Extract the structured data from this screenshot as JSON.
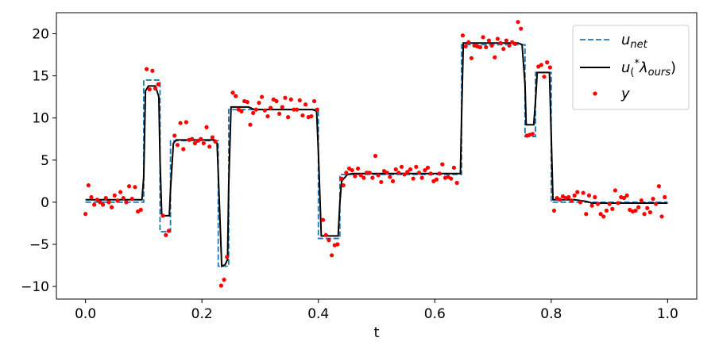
{
  "chart_data": {
    "type": "line",
    "title": "",
    "xlabel": "t",
    "ylabel": "",
    "xlim": [
      -0.05,
      1.05
    ],
    "ylim": [
      -11.5,
      22.5
    ],
    "xticks": [
      {
        "value": 0.0,
        "label": "0.0"
      },
      {
        "value": 0.2,
        "label": "0.2"
      },
      {
        "value": 0.4,
        "label": "0.4"
      },
      {
        "value": 0.6,
        "label": "0.6"
      },
      {
        "value": 0.8,
        "label": "0.8"
      },
      {
        "value": 1.0,
        "label": "1.0"
      }
    ],
    "yticks": [
      {
        "value": -10,
        "label": "−10"
      },
      {
        "value": -5,
        "label": "−5"
      },
      {
        "value": 0,
        "label": "0"
      },
      {
        "value": 5,
        "label": "5"
      },
      {
        "value": 10,
        "label": "10"
      },
      {
        "value": 15,
        "label": "15"
      },
      {
        "value": 20,
        "label": "20"
      }
    ],
    "grid": false,
    "legend_position": "top-right",
    "series": [
      {
        "name": "u_net",
        "legend_label": "u",
        "legend_sub": "net",
        "style": "dashed",
        "color": "#1f77b4",
        "points": [
          [
            0.0,
            0.0
          ],
          [
            0.1,
            0.0
          ],
          [
            0.1,
            14.5
          ],
          [
            0.128,
            14.5
          ],
          [
            0.128,
            -3.5
          ],
          [
            0.146,
            -3.5
          ],
          [
            0.146,
            7.3
          ],
          [
            0.228,
            7.3
          ],
          [
            0.228,
            -7.6
          ],
          [
            0.246,
            -7.6
          ],
          [
            0.246,
            11.0
          ],
          [
            0.4,
            11.0
          ],
          [
            0.4,
            -4.3
          ],
          [
            0.437,
            -4.3
          ],
          [
            0.437,
            3.3
          ],
          [
            0.646,
            3.3
          ],
          [
            0.646,
            18.7
          ],
          [
            0.755,
            18.7
          ],
          [
            0.755,
            7.8
          ],
          [
            0.773,
            7.8
          ],
          [
            0.773,
            15.4
          ],
          [
            0.8,
            15.4
          ],
          [
            0.8,
            0.0
          ],
          [
            1.0,
            0.0
          ]
        ]
      },
      {
        "name": "u*(λ_ours)",
        "legend_label": "u",
        "legend_sub": "(",
        "legend_sup": "*",
        "legend_rest": "λ",
        "legend_sub2": "ours",
        "legend_close": ")",
        "style": "solid",
        "color": "#000000",
        "points": [
          [
            0.0,
            0.3
          ],
          [
            0.097,
            0.3
          ],
          [
            0.1,
            3.0
          ],
          [
            0.103,
            13.2
          ],
          [
            0.108,
            13.8
          ],
          [
            0.12,
            13.8
          ],
          [
            0.126,
            12.5
          ],
          [
            0.128,
            5.0
          ],
          [
            0.131,
            -1.6
          ],
          [
            0.144,
            -1.6
          ],
          [
            0.146,
            1.5
          ],
          [
            0.151,
            7.0
          ],
          [
            0.156,
            7.4
          ],
          [
            0.222,
            7.4
          ],
          [
            0.226,
            7.0
          ],
          [
            0.228,
            3.5
          ],
          [
            0.234,
            -7.6
          ],
          [
            0.24,
            -7.4
          ],
          [
            0.244,
            -6.8
          ],
          [
            0.246,
            2.0
          ],
          [
            0.25,
            11.3
          ],
          [
            0.28,
            11.3
          ],
          [
            0.29,
            11.0
          ],
          [
            0.39,
            11.0
          ],
          [
            0.397,
            10.8
          ],
          [
            0.4,
            6.0
          ],
          [
            0.405,
            -4.0
          ],
          [
            0.434,
            -4.0
          ],
          [
            0.437,
            0.0
          ],
          [
            0.44,
            2.5
          ],
          [
            0.45,
            3.3
          ],
          [
            0.46,
            3.4
          ],
          [
            0.644,
            3.4
          ],
          [
            0.646,
            10.0
          ],
          [
            0.649,
            18.9
          ],
          [
            0.743,
            18.9
          ],
          [
            0.75,
            18.7
          ],
          [
            0.755,
            14.0
          ],
          [
            0.757,
            9.2
          ],
          [
            0.77,
            9.2
          ],
          [
            0.773,
            12.0
          ],
          [
            0.776,
            15.4
          ],
          [
            0.797,
            15.4
          ],
          [
            0.8,
            8.0
          ],
          [
            0.803,
            0.3
          ],
          [
            0.84,
            0.3
          ],
          [
            0.86,
            0.1
          ],
          [
            0.87,
            -0.1
          ],
          [
            1.0,
            -0.1
          ]
        ]
      },
      {
        "name": "y",
        "legend_label": "y",
        "style": "scatter",
        "color": "#ff0000",
        "points": [
          [
            0.0,
            -1.4
          ],
          [
            0.005,
            2.0
          ],
          [
            0.01,
            0.6
          ],
          [
            0.015,
            -0.3
          ],
          [
            0.02,
            0.3
          ],
          [
            0.025,
            0.0
          ],
          [
            0.03,
            -0.3
          ],
          [
            0.035,
            0.5
          ],
          [
            0.04,
            0.0
          ],
          [
            0.045,
            -0.6
          ],
          [
            0.05,
            0.8
          ],
          [
            0.055,
            0.2
          ],
          [
            0.06,
            1.2
          ],
          [
            0.065,
            0.5
          ],
          [
            0.07,
            0.0
          ],
          [
            0.075,
            1.9
          ],
          [
            0.08,
            0.4
          ],
          [
            0.085,
            1.8
          ],
          [
            0.09,
            -1.1
          ],
          [
            0.095,
            -0.9
          ],
          [
            0.105,
            15.8
          ],
          [
            0.11,
            13.4
          ],
          [
            0.115,
            15.6
          ],
          [
            0.12,
            13.5
          ],
          [
            0.125,
            14.0
          ],
          [
            0.133,
            -1.6
          ],
          [
            0.138,
            -3.9
          ],
          [
            0.143,
            -3.4
          ],
          [
            0.153,
            7.9
          ],
          [
            0.158,
            6.8
          ],
          [
            0.163,
            9.4
          ],
          [
            0.168,
            6.3
          ],
          [
            0.173,
            9.5
          ],
          [
            0.178,
            7.4
          ],
          [
            0.183,
            7.5
          ],
          [
            0.188,
            7.0
          ],
          [
            0.193,
            7.3
          ],
          [
            0.198,
            7.5
          ],
          [
            0.203,
            7.0
          ],
          [
            0.208,
            8.9
          ],
          [
            0.213,
            6.6
          ],
          [
            0.218,
            7.7
          ],
          [
            0.223,
            7.2
          ],
          [
            0.233,
            -9.9
          ],
          [
            0.238,
            -9.2
          ],
          [
            0.243,
            -6.5
          ],
          [
            0.253,
            13.0
          ],
          [
            0.258,
            12.6
          ],
          [
            0.263,
            11.0
          ],
          [
            0.268,
            10.8
          ],
          [
            0.273,
            12.0
          ],
          [
            0.278,
            11.9
          ],
          [
            0.283,
            9.2
          ],
          [
            0.288,
            10.6
          ],
          [
            0.293,
            11.0
          ],
          [
            0.298,
            11.8
          ],
          [
            0.303,
            12.5
          ],
          [
            0.308,
            10.9
          ],
          [
            0.313,
            10.2
          ],
          [
            0.318,
            11.2
          ],
          [
            0.323,
            12.2
          ],
          [
            0.328,
            12.0
          ],
          [
            0.333,
            10.5
          ],
          [
            0.338,
            11.3
          ],
          [
            0.343,
            12.4
          ],
          [
            0.348,
            10.1
          ],
          [
            0.353,
            12.2
          ],
          [
            0.358,
            11.0
          ],
          [
            0.363,
            11.0
          ],
          [
            0.368,
            12.1
          ],
          [
            0.373,
            10.3
          ],
          [
            0.378,
            11.6
          ],
          [
            0.383,
            10.1
          ],
          [
            0.388,
            10.2
          ],
          [
            0.393,
            12.0
          ],
          [
            0.398,
            11.0
          ],
          [
            0.408,
            -2.1
          ],
          [
            0.413,
            -3.9
          ],
          [
            0.418,
            -4.5
          ],
          [
            0.423,
            -6.3
          ],
          [
            0.428,
            -5.1
          ],
          [
            0.433,
            -5.0
          ],
          [
            0.44,
            2.8
          ],
          [
            0.443,
            2.0
          ],
          [
            0.448,
            3.5
          ],
          [
            0.453,
            4.0
          ],
          [
            0.458,
            3.8
          ],
          [
            0.463,
            3.1
          ],
          [
            0.468,
            4.0
          ],
          [
            0.473,
            3.2
          ],
          [
            0.478,
            2.9
          ],
          [
            0.483,
            3.5
          ],
          [
            0.488,
            3.5
          ],
          [
            0.493,
            2.9
          ],
          [
            0.498,
            5.5
          ],
          [
            0.503,
            3.2
          ],
          [
            0.508,
            2.4
          ],
          [
            0.513,
            3.7
          ],
          [
            0.518,
            3.5
          ],
          [
            0.523,
            3.0
          ],
          [
            0.528,
            2.5
          ],
          [
            0.533,
            3.9
          ],
          [
            0.538,
            3.5
          ],
          [
            0.543,
            4.2
          ],
          [
            0.548,
            3.3
          ],
          [
            0.553,
            3.6
          ],
          [
            0.558,
            3.9
          ],
          [
            0.563,
            2.8
          ],
          [
            0.568,
            4.2
          ],
          [
            0.573,
            3.5
          ],
          [
            0.578,
            2.9
          ],
          [
            0.583,
            3.8
          ],
          [
            0.588,
            4.1
          ],
          [
            0.593,
            3.4
          ],
          [
            0.598,
            2.5
          ],
          [
            0.603,
            2.7
          ],
          [
            0.608,
            3.4
          ],
          [
            0.613,
            4.5
          ],
          [
            0.618,
            2.9
          ],
          [
            0.623,
            3.0
          ],
          [
            0.628,
            2.8
          ],
          [
            0.633,
            4.1
          ],
          [
            0.638,
            2.3
          ],
          [
            0.648,
            19.8
          ],
          [
            0.653,
            18.5
          ],
          [
            0.658,
            19.0
          ],
          [
            0.663,
            17.1
          ],
          [
            0.668,
            18.6
          ],
          [
            0.673,
            18.5
          ],
          [
            0.678,
            18.4
          ],
          [
            0.683,
            19.6
          ],
          [
            0.688,
            18.4
          ],
          [
            0.693,
            19.2
          ],
          [
            0.698,
            18.6
          ],
          [
            0.703,
            17.2
          ],
          [
            0.708,
            19.4
          ],
          [
            0.713,
            18.9
          ],
          [
            0.718,
            18.2
          ],
          [
            0.723,
            19.2
          ],
          [
            0.728,
            18.6
          ],
          [
            0.733,
            19.0
          ],
          [
            0.738,
            18.8
          ],
          [
            0.743,
            21.4
          ],
          [
            0.748,
            20.6
          ],
          [
            0.758,
            7.9
          ],
          [
            0.763,
            8.0
          ],
          [
            0.768,
            8.1
          ],
          [
            0.778,
            16.1
          ],
          [
            0.783,
            16.3
          ],
          [
            0.788,
            14.9
          ],
          [
            0.793,
            16.6
          ],
          [
            0.798,
            16.0
          ],
          [
            0.805,
            -1.0
          ],
          [
            0.81,
            0.5
          ],
          [
            0.815,
            0.3
          ],
          [
            0.82,
            0.7
          ],
          [
            0.825,
            0.5
          ],
          [
            0.83,
            0.6
          ],
          [
            0.835,
            0.2
          ],
          [
            0.84,
            0.8
          ],
          [
            0.845,
            1.2
          ],
          [
            0.85,
            0.0
          ],
          [
            0.855,
            1.1
          ],
          [
            0.86,
            -1.4
          ],
          [
            0.865,
            0.8
          ],
          [
            0.87,
            -0.4
          ],
          [
            0.875,
            0.6
          ],
          [
            0.88,
            -0.2
          ],
          [
            0.885,
            -1.4
          ],
          [
            0.89,
            -1.7
          ],
          [
            0.895,
            -1.0
          ],
          [
            0.9,
            -0.2
          ],
          [
            0.905,
            -0.8
          ],
          [
            0.91,
            1.4
          ],
          [
            0.915,
            -0.1
          ],
          [
            0.92,
            0.6
          ],
          [
            0.925,
            0.5
          ],
          [
            0.93,
            0.8
          ],
          [
            0.935,
            -0.9
          ],
          [
            0.94,
            -1.1
          ],
          [
            0.945,
            -1.0
          ],
          [
            0.95,
            -0.6
          ],
          [
            0.955,
            0.2
          ],
          [
            0.96,
            -1.4
          ],
          [
            0.965,
            -0.7
          ],
          [
            0.97,
            -1.2
          ],
          [
            0.975,
            0.4
          ],
          [
            0.98,
            -0.2
          ],
          [
            0.985,
            1.9
          ],
          [
            0.99,
            -1.7
          ],
          [
            0.995,
            0.6
          ]
        ]
      }
    ]
  }
}
